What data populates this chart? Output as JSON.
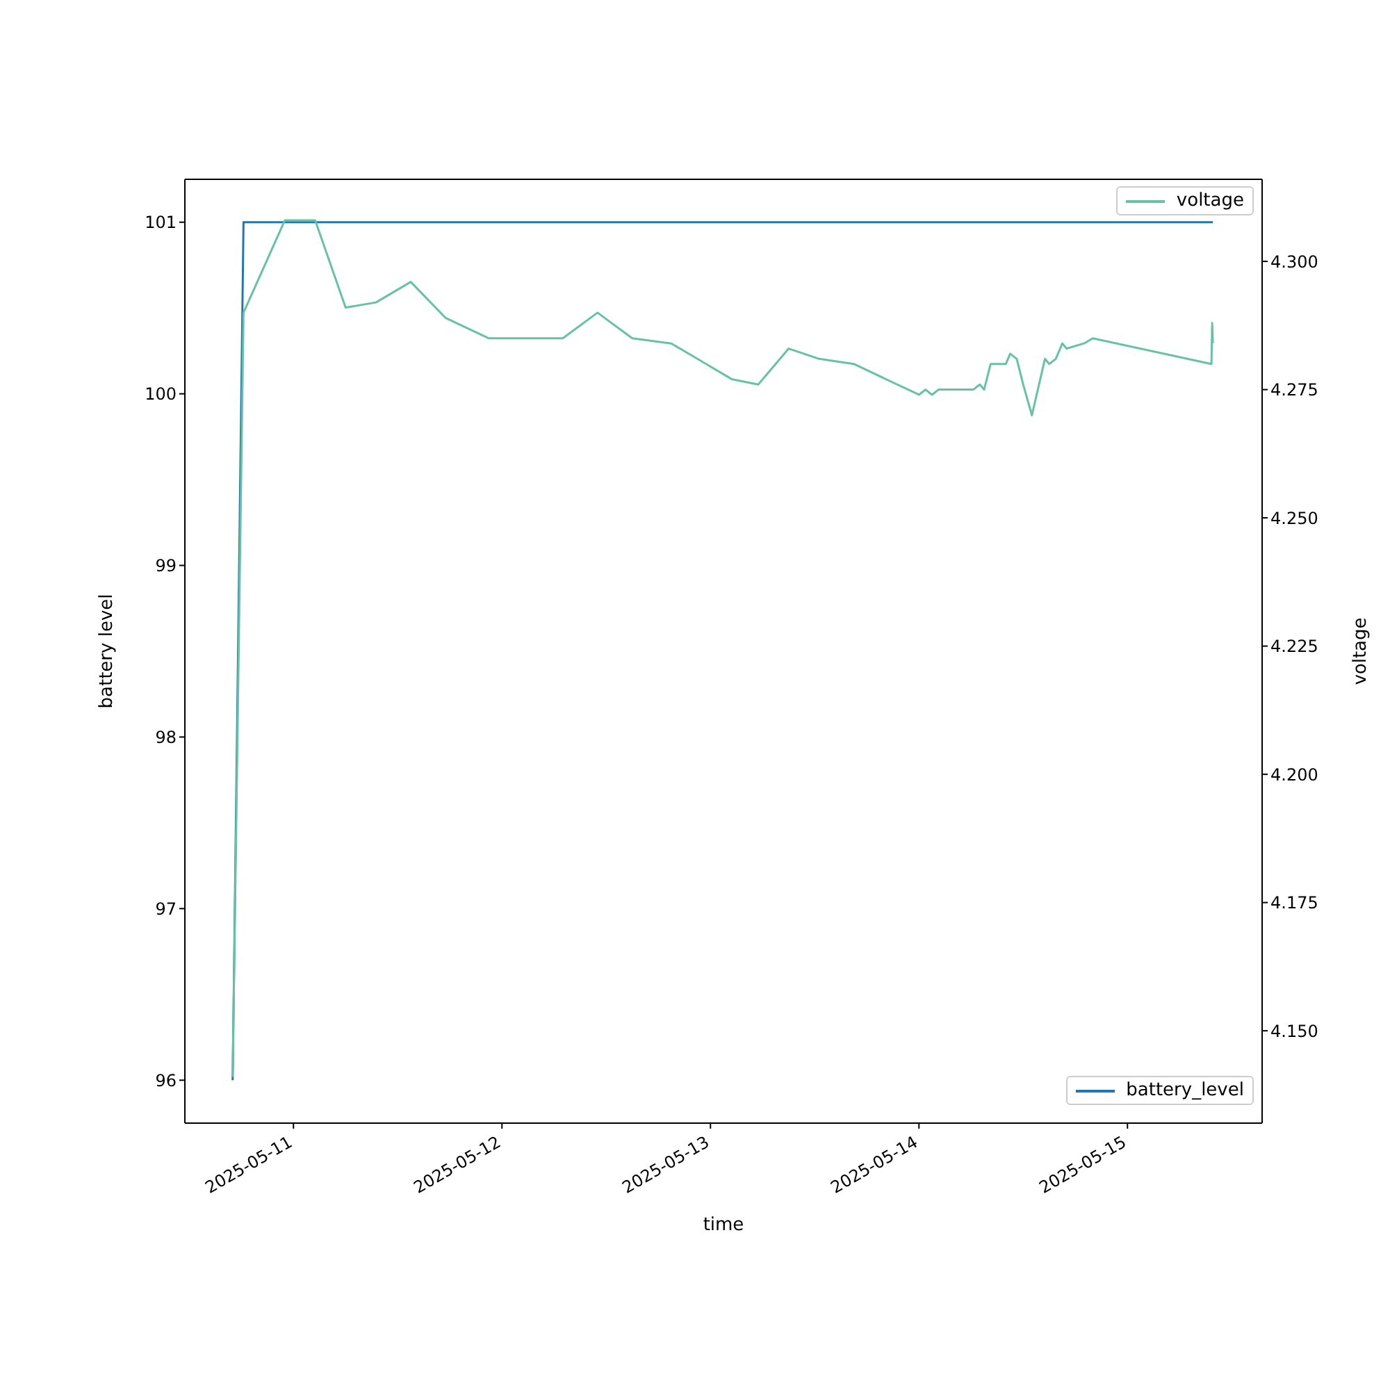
{
  "chart_data": {
    "type": "line",
    "xlabel": "time",
    "ylabel": "battery level",
    "y2label": "voltage",
    "xlim": [
      "2025-05-10T11:30",
      "2025-05-15T15:30"
    ],
    "xticks": [
      "2025-05-11",
      "2025-05-12",
      "2025-05-13",
      "2025-05-14",
      "2025-05-15"
    ],
    "ylim": [
      95.75,
      101.25
    ],
    "yticks": [
      96,
      97,
      98,
      99,
      100,
      101
    ],
    "y2lim": [
      4.132,
      4.316
    ],
    "y2ticks": [
      {
        "value": 4.15,
        "label": "4.150"
      },
      {
        "value": 4.175,
        "label": "4.175"
      },
      {
        "value": 4.2,
        "label": "4.200"
      },
      {
        "value": 4.225,
        "label": "4.225"
      },
      {
        "value": 4.25,
        "label": "4.250"
      },
      {
        "value": 4.275,
        "label": "4.275"
      },
      {
        "value": 4.3,
        "label": "4.300"
      }
    ],
    "legend": "right",
    "marker": "none",
    "line_style": "solid",
    "series": [
      {
        "name": "battery_level",
        "color": "#1f77b4",
        "x": [
          "2025-05-10T17:00",
          "2025-05-10T18:15",
          "2025-05-15T09:50"
        ],
        "values": [
          96,
          101,
          101
        ]
      },
      {
        "name": "voltage",
        "color": "#66c2a5",
        "axis": "y2",
        "x": [
          "2025-05-10T17:00",
          "2025-05-10T18:15",
          "2025-05-10T23:00",
          "2025-05-11T02:30",
          "2025-05-11T06:00",
          "2025-05-11T09:30",
          "2025-05-11T13:30",
          "2025-05-11T17:30",
          "2025-05-11T22:30",
          "2025-05-12T07:00",
          "2025-05-12T11:00",
          "2025-05-12T15:00",
          "2025-05-12T19:30",
          "2025-05-13T02:30",
          "2025-05-13T05:30",
          "2025-05-13T09:00",
          "2025-05-13T12:30",
          "2025-05-13T16:30",
          "2025-05-14T00:00",
          "2025-05-14T00:45",
          "2025-05-14T01:30",
          "2025-05-14T02:15",
          "2025-05-14T06:15",
          "2025-05-14T07:00",
          "2025-05-14T07:30",
          "2025-05-14T08:15",
          "2025-05-14T10:00",
          "2025-05-14T10:30",
          "2025-05-14T11:15",
          "2025-05-14T12:00",
          "2025-05-14T13:00",
          "2025-05-14T14:30",
          "2025-05-14T15:00",
          "2025-05-14T15:45",
          "2025-05-14T16:30",
          "2025-05-14T17:00",
          "2025-05-14T19:00",
          "2025-05-14T20:00",
          "2025-05-15T09:40",
          "2025-05-15T09:45",
          "2025-05-15T09:50"
        ],
        "values": [
          4.141,
          4.29,
          4.308,
          4.308,
          4.291,
          4.292,
          4.296,
          4.289,
          4.285,
          4.285,
          4.29,
          4.285,
          4.284,
          4.277,
          4.276,
          4.283,
          4.281,
          4.28,
          4.274,
          4.275,
          4.274,
          4.275,
          4.275,
          4.276,
          4.275,
          4.28,
          4.28,
          4.282,
          4.281,
          4.276,
          4.27,
          4.281,
          4.28,
          4.281,
          4.284,
          4.283,
          4.284,
          4.285,
          4.28,
          4.288,
          4.284
        ]
      }
    ]
  }
}
